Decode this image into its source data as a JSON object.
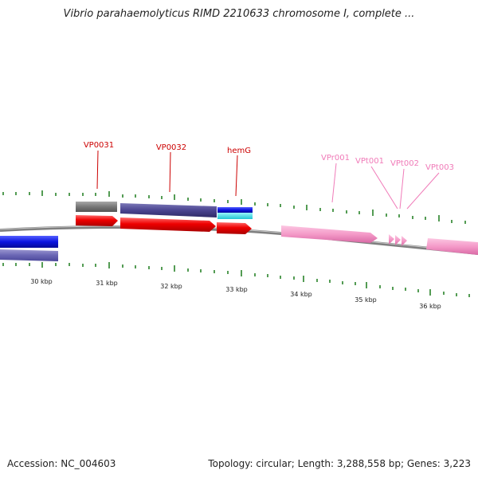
{
  "title": "Vibrio parahaemolyticus RIMD 2210633 chromosome I, complete ...",
  "footer": {
    "accession": "Accession: NC_004603",
    "summary": "Topology: circular; Length: 3,288,558 bp; Genes: 3,223"
  },
  "scale": {
    "unit": "kbp",
    "labels": [
      {
        "text": "30 kbp",
        "kbp": 30
      },
      {
        "text": "31 kbp",
        "kbp": 31
      },
      {
        "text": "32 kbp",
        "kbp": 32
      },
      {
        "text": "33 kbp",
        "kbp": 33
      },
      {
        "text": "34 kbp",
        "kbp": 34
      },
      {
        "text": "35 kbp",
        "kbp": 35
      },
      {
        "text": "36 kbp",
        "kbp": 36
      }
    ]
  },
  "gene_labels": [
    {
      "text": "VP0031",
      "color": "#cc0000"
    },
    {
      "text": "VP0032",
      "color": "#cc0000"
    },
    {
      "text": "hemG",
      "color": "#cc0000"
    },
    {
      "text": "VPr001",
      "color": "#f07ab8"
    },
    {
      "text": "VPt001",
      "color": "#f07ab8"
    },
    {
      "text": "VPt002",
      "color": "#f07ab8"
    },
    {
      "text": "VPt003",
      "color": "#f07ab8"
    }
  ],
  "colors": {
    "cds_red": "#ee0000",
    "cog_slate": "#4a4490",
    "cog_gray": "#777777",
    "cog_blue": "#0b14e0",
    "cog_cyan": "#33e6f0",
    "rna_pink": "#f49ac8",
    "backbone": "#7f7f7f",
    "tick_green": "#1a7a1a"
  }
}
